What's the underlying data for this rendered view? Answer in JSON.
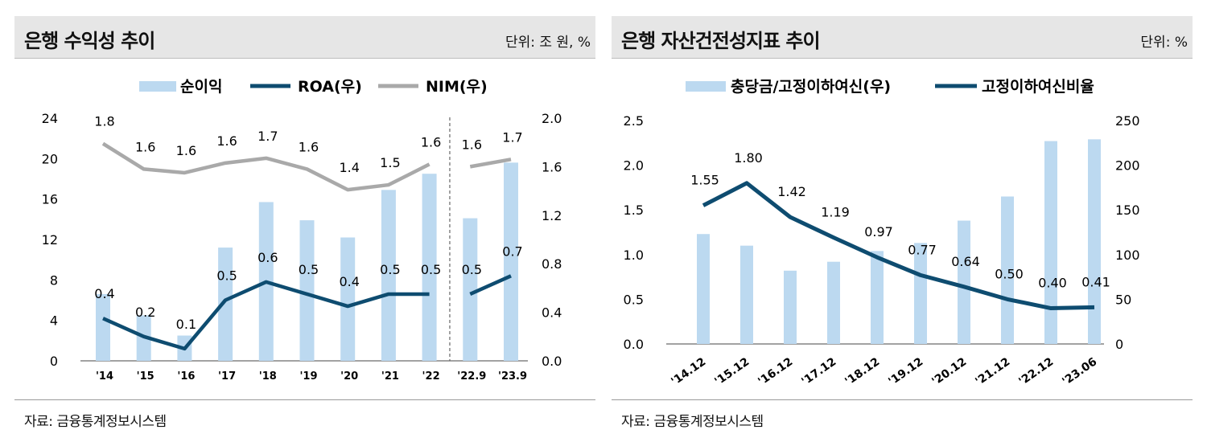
{
  "colors": {
    "bar": "#bcd9f0",
    "line_dark": "#0e4c70",
    "line_gray": "#a9a9a9",
    "header_bg": "#e6e6e6"
  },
  "left_panel": {
    "title": "은행 수익성 추이",
    "unit": "단위: 조 원, %",
    "source": "자료: 금융통계정보시스템"
  },
  "right_panel": {
    "title": "은행 자산건전성지표 추이",
    "unit": "단위: %",
    "source": "자료: 금융통계정보시스템"
  },
  "chart_data": [
    {
      "type": "bar",
      "categories": [
        "'14",
        "'15",
        "'16",
        "'17",
        "'18",
        "'19",
        "'20",
        "'21",
        "'22",
        "'22.9",
        "'23.9"
      ],
      "break_after_index": 8,
      "legend_placement": "top",
      "y_left": {
        "ticks": [
          "0",
          "4",
          "8",
          "12",
          "16",
          "20",
          "24"
        ],
        "range": [
          0,
          24
        ]
      },
      "y_right": {
        "ticks": [
          "0.0",
          "0.4",
          "0.8",
          "1.2",
          "1.6",
          "2.0"
        ],
        "range": [
          0,
          2.0
        ]
      },
      "series": [
        {
          "name": "순이익",
          "kind": "bar",
          "axis": "left",
          "values": [
            6.6,
            4.5,
            2.5,
            11.2,
            15.7,
            13.9,
            12.2,
            16.9,
            18.5,
            14.1,
            19.6
          ]
        },
        {
          "name": "ROA(우)",
          "kind": "line",
          "axis": "right",
          "values": [
            0.35,
            0.2,
            0.1,
            0.5,
            0.65,
            0.55,
            0.45,
            0.55,
            0.55,
            0.55,
            0.7
          ],
          "labels": [
            "0.4",
            "0.2",
            "0.1",
            "0.5",
            "0.6",
            "0.5",
            "0.4",
            "0.5",
            "0.5",
            "0.5",
            "0.7"
          ]
        },
        {
          "name": "NIM(우)",
          "kind": "line",
          "axis": "right",
          "values": [
            1.79,
            1.58,
            1.55,
            1.63,
            1.67,
            1.58,
            1.41,
            1.45,
            1.62,
            1.6,
            1.66
          ],
          "labels": [
            "1.8",
            "1.6",
            "1.6",
            "1.6",
            "1.7",
            "1.6",
            "1.4",
            "1.5",
            "1.6",
            "1.6",
            "1.7"
          ]
        }
      ]
    },
    {
      "type": "bar",
      "categories": [
        "'14.12",
        "'15.12",
        "'16.12",
        "'17.12",
        "'18.12",
        "'19.12",
        "'20.12",
        "'21.12",
        "'22.12",
        "'23.06"
      ],
      "legend_placement": "top",
      "y_left": {
        "ticks": [
          "0.0",
          "0.5",
          "1.0",
          "1.5",
          "2.0",
          "2.5"
        ],
        "range": [
          0,
          2.5
        ]
      },
      "y_right": {
        "ticks": [
          "0",
          "50",
          "100",
          "150",
          "200",
          "250"
        ],
        "range": [
          0,
          250
        ]
      },
      "series": [
        {
          "name": "충당금/고정이하여신(우)",
          "kind": "bar",
          "axis": "right",
          "values": [
            123,
            110,
            82,
            92,
            104,
            113,
            138,
            165,
            227,
            229
          ]
        },
        {
          "name": "고정이하여신비율",
          "kind": "line",
          "axis": "left",
          "values": [
            1.55,
            1.8,
            1.42,
            1.19,
            0.97,
            0.77,
            0.64,
            0.5,
            0.4,
            0.41
          ],
          "labels": [
            "1.55",
            "1.80",
            "1.42",
            "1.19",
            "0.97",
            "0.77",
            "0.64",
            "0.50",
            "0.40",
            "0.41"
          ]
        }
      ]
    }
  ]
}
